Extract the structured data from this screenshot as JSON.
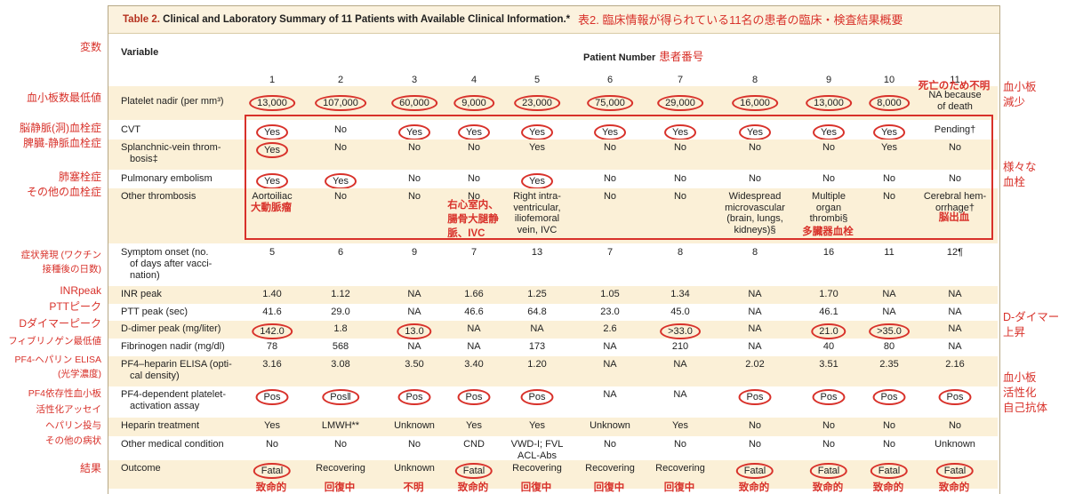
{
  "title_lead": "Table 2.",
  "title_rest": " Clinical and Laboratory Summary of 11 Patients with Available Clinical Information.*",
  "title_jp": "表2. 臨床情報が得られている11名の患者の臨床・検査結果概要",
  "variable_header": "Variable",
  "patient_number_header": "Patient Number",
  "patient_number_jp": "患者番号",
  "patients": [
    "1",
    "2",
    "3",
    "4",
    "5",
    "6",
    "7",
    "8",
    "9",
    "10",
    "11"
  ],
  "rows": [
    {
      "label": "Platelet nadir (per mm³)",
      "values": [
        "13,000",
        "107,000",
        "60,000",
        "9,000",
        "23,000",
        "75,000",
        "29,000",
        "16,000",
        "13,000",
        "8,000",
        "NA because|of death"
      ],
      "circled": [
        1,
        1,
        1,
        1,
        1,
        1,
        1,
        1,
        1,
        1,
        0
      ]
    },
    {
      "label": "CVT",
      "values": [
        "Yes",
        "No",
        "Yes",
        "Yes",
        "Yes",
        "Yes",
        "Yes",
        "Yes",
        "Yes",
        "Yes",
        "Pending†"
      ],
      "circled": [
        1,
        0,
        1,
        1,
        1,
        1,
        1,
        1,
        1,
        1,
        0
      ]
    },
    {
      "label": "Splanchnic-vein throm-|bosis‡",
      "values": [
        "Yes",
        "No",
        "No",
        "No",
        "Yes",
        "No",
        "No",
        "No",
        "No",
        "Yes",
        "No"
      ],
      "circled": [
        1,
        0,
        0,
        0,
        0,
        0,
        0,
        0,
        0,
        0,
        0
      ]
    },
    {
      "label": "Pulmonary embolism",
      "values": [
        "Yes",
        "Yes",
        "No",
        "No",
        "Yes",
        "No",
        "No",
        "No",
        "No",
        "No",
        "No"
      ],
      "circled": [
        1,
        1,
        0,
        0,
        1,
        0,
        0,
        0,
        0,
        0,
        0
      ]
    },
    {
      "label": "Other thrombosis",
      "values": [
        "Aortoiliac",
        "No",
        "No",
        "No",
        "Right intra-|ventricular,|iliofemoral|vein, IVC",
        "No",
        "No",
        "Widespread|microvascular|(brain, lungs,|kidneys)§",
        "Multiple|organ|thrombi§",
        "No",
        "Cerebral hem-|orrhage†"
      ],
      "circled": [
        0,
        0,
        0,
        0,
        0,
        0,
        0,
        0,
        0,
        0,
        0
      ]
    },
    {
      "label": "Symptom onset (no.|of days after vacci-|nation)",
      "values": [
        "5",
        "6",
        "9",
        "7",
        "13",
        "7",
        "8",
        "8",
        "16",
        "11",
        "12¶"
      ],
      "circled": [
        0,
        0,
        0,
        0,
        0,
        0,
        0,
        0,
        0,
        0,
        0
      ]
    },
    {
      "label": "INR peak",
      "values": [
        "1.40",
        "1.12",
        "NA",
        "1.66",
        "1.25",
        "1.05",
        "1.34",
        "NA",
        "1.70",
        "NA",
        "NA"
      ],
      "circled": [
        0,
        0,
        0,
        0,
        0,
        0,
        0,
        0,
        0,
        0,
        0
      ]
    },
    {
      "label": "PTT peak (sec)",
      "values": [
        "41.6",
        "29.0",
        "NA",
        "46.6",
        "64.8",
        "23.0",
        "45.0",
        "NA",
        "46.1",
        "NA",
        "NA"
      ],
      "circled": [
        0,
        0,
        0,
        0,
        0,
        0,
        0,
        0,
        0,
        0,
        0
      ]
    },
    {
      "label": "D-dimer peak (mg/liter)",
      "values": [
        "142.0",
        "1.8",
        "13.0",
        "NA",
        "NA",
        "2.6",
        ">33.0",
        "NA",
        "21.0",
        ">35.0",
        "NA"
      ],
      "circled": [
        1,
        0,
        1,
        0,
        0,
        0,
        1,
        0,
        1,
        1,
        0
      ]
    },
    {
      "label": "Fibrinogen nadir (mg/dl)",
      "values": [
        "78",
        "568",
        "NA",
        "NA",
        "173",
        "NA",
        "210",
        "NA",
        "40",
        "80",
        "NA"
      ],
      "circled": [
        0,
        0,
        0,
        0,
        0,
        0,
        0,
        0,
        0,
        0,
        0
      ]
    },
    {
      "label": "PF4–heparin ELISA (opti-|cal density)",
      "values": [
        "3.16",
        "3.08",
        "3.50",
        "3.40",
        "1.20",
        "NA",
        "NA",
        "2.02",
        "3.51",
        "2.35",
        "2.16"
      ],
      "circled": [
        0,
        0,
        0,
        0,
        0,
        0,
        0,
        0,
        0,
        0,
        0
      ]
    },
    {
      "label": "PF4-dependent platelet-|activation assay",
      "values": [
        "Pos",
        "Pos‖",
        "Pos",
        "Pos",
        "Pos",
        "NA",
        "NA",
        "Pos",
        "Pos",
        "Pos",
        "Pos"
      ],
      "circled": [
        1,
        1,
        1,
        1,
        1,
        0,
        0,
        1,
        1,
        1,
        1
      ]
    },
    {
      "label": "Heparin treatment",
      "values": [
        "Yes",
        "LMWH**",
        "Unknown",
        "Yes",
        "Yes",
        "Unknown",
        "Yes",
        "No",
        "No",
        "No",
        "No"
      ],
      "circled": [
        0,
        0,
        0,
        0,
        0,
        0,
        0,
        0,
        0,
        0,
        0
      ]
    },
    {
      "label": "Other medical condition",
      "values": [
        "No",
        "No",
        "No",
        "CND",
        "VWD-I; FVL|ACL-Abs",
        "No",
        "No",
        "No",
        "No",
        "No",
        "Unknown"
      ],
      "circled": [
        0,
        0,
        0,
        0,
        0,
        0,
        0,
        0,
        0,
        0,
        0
      ]
    },
    {
      "label": "Outcome",
      "values": [
        "Fatal",
        "Recovering",
        "Unknown",
        "Fatal",
        "Recovering",
        "Recovering",
        "Recovering",
        "Fatal",
        "Fatal",
        "Fatal",
        "Fatal"
      ],
      "circled": [
        1,
        0,
        0,
        1,
        0,
        0,
        0,
        1,
        1,
        1,
        1
      ]
    }
  ],
  "cell_notes": {
    "other_thrombosis_1": "大動脈瘤",
    "other_thrombosis_4": "右心室内、|腸骨大腿静|脈、IVC",
    "other_thrombosis_9": "多臓器血栓",
    "other_thrombosis_11": "脳出血",
    "platelet_11": "死亡のため不明"
  },
  "outcome_jp": [
    "致命的",
    "回復中",
    "不明",
    "致命的",
    "回復中",
    "回復中",
    "回復中",
    "致命的",
    "致命的",
    "致命的",
    "致命的"
  ],
  "left_labels": {
    "variable": "変数",
    "platelet": "血小板数最低値",
    "cvt": "脳静脈(洞)血栓症",
    "splanchnic": "脾臓-静脈血栓症",
    "pe": "肺塞栓症",
    "other": "その他の血栓症",
    "onset1": "症状発現 (ワクチン",
    "onset2": "接種後の日数)",
    "inr": "INRpeak",
    "ptt": "PTTピーク",
    "ddimer": "Dダイマーピーク",
    "fib": "フィブリノゲン最低値",
    "elisa1": "PF4-ヘパリン ELISA",
    "elisa2": "(光学濃度)",
    "assay1": "PF4依存性血小板",
    "assay2": "活性化アッセイ",
    "heparin": "ヘパリン投与",
    "other_med": "その他の病状",
    "outcome": "結果"
  },
  "right_labels": {
    "thrombocytopenia1": "血小板",
    "thrombocytopenia2": "減少",
    "thrombosis1": "様々な",
    "thrombosis2": "血栓",
    "ddimer1": "D-ダイマー",
    "ddimer2": "上昇",
    "antibody1": "血小板",
    "antibody2": "活性化",
    "antibody3": "自己抗体"
  }
}
